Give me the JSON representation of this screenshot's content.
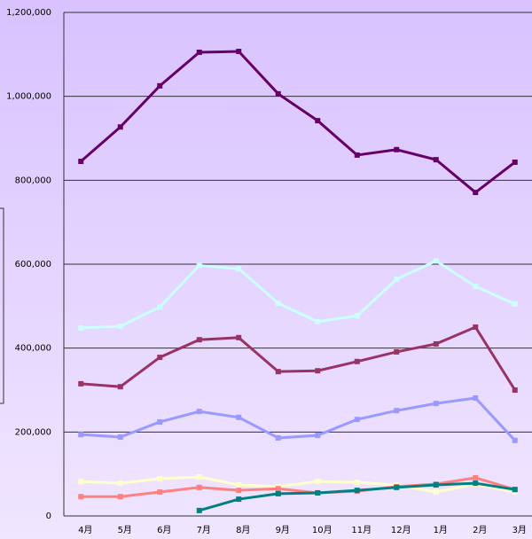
{
  "chart_data": {
    "type": "line",
    "categories": [
      "4月",
      "5月",
      "6月",
      "7月",
      "8月",
      "9月",
      "10月",
      "11月",
      "12月",
      "1月",
      "2月",
      "3月"
    ],
    "series": [
      {
        "color": "#660066",
        "values": [
          845000,
          927000,
          1025000,
          1105000,
          1107000,
          1006000,
          942000,
          860000,
          873000,
          849000,
          771000,
          843000
        ]
      },
      {
        "color": "#ccffff",
        "values": [
          448000,
          452000,
          498000,
          597000,
          589000,
          507000,
          463000,
          477000,
          564000,
          608000,
          547000,
          505000
        ]
      },
      {
        "color": "#993366",
        "values": [
          315000,
          308000,
          378000,
          420000,
          425000,
          344000,
          346000,
          368000,
          391000,
          410000,
          450000,
          300000
        ]
      },
      {
        "color": "#9999ff",
        "values": [
          194000,
          188000,
          224000,
          249000,
          235000,
          186000,
          192000,
          230000,
          251000,
          268000,
          281000,
          180000
        ]
      },
      {
        "color": "#ffffcc",
        "values": [
          82000,
          78000,
          89000,
          93000,
          74000,
          70000,
          82000,
          80000,
          74000,
          57000,
          76000,
          57000
        ]
      },
      {
        "color": "#ff8080",
        "values": [
          46000,
          46000,
          57000,
          68000,
          61000,
          65000,
          55000,
          59000,
          70000,
          76000,
          91000,
          63000
        ]
      },
      {
        "color": "#008080",
        "values": [
          null,
          null,
          null,
          13000,
          40000,
          53000,
          55000,
          61000,
          68000,
          74000,
          78000,
          63000
        ]
      }
    ],
    "ylim": [
      0,
      1200000
    ],
    "yticks": [
      {
        "value": 0,
        "label": "0"
      },
      {
        "value": 200000,
        "label": "200,000"
      },
      {
        "value": 400000,
        "label": "400,000"
      },
      {
        "value": 600000,
        "label": "600,000"
      },
      {
        "value": 800000,
        "label": "800,000"
      },
      {
        "value": 1000000,
        "label": "1,000,000"
      },
      {
        "value": 1200000,
        "label": "1,200,000"
      }
    ],
    "grid": true
  }
}
